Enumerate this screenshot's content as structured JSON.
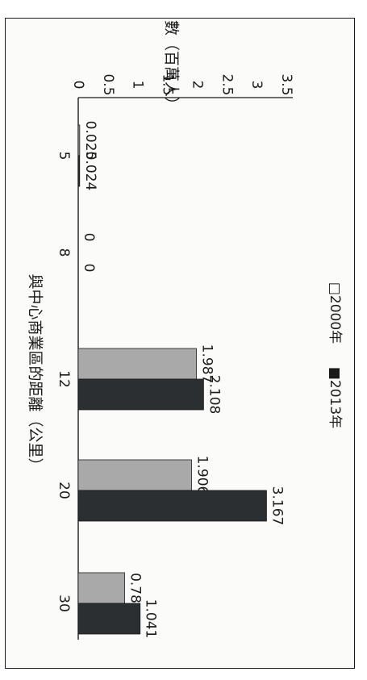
{
  "chart_data": {
    "type": "bar",
    "orientation": "rotated-90-clockwise",
    "categories": [
      "5",
      "8",
      "12",
      "20",
      "30"
    ],
    "series": [
      {
        "name": "□2000年",
        "values": [
          0.025,
          0,
          1.987,
          1.906,
          0.78
        ],
        "color": "#a9a9a9"
      },
      {
        "name": "■2013年",
        "values": [
          0.024,
          0,
          2.108,
          3.167,
          1.041
        ],
        "color": "#2b2f31"
      }
    ],
    "value_labels": [
      [
        "0.025",
        "0",
        "1.987",
        "1.906",
        "0.78"
      ],
      [
        "0.024",
        "0",
        "2.108",
        "3.167",
        "1.041"
      ]
    ],
    "yticks": [
      "0",
      "0.5",
      "1",
      "1.5",
      "2",
      "2.5",
      "3",
      "3.5"
    ],
    "ylim": [
      0,
      3.5
    ],
    "ylabel": "人口數（百萬人）",
    "xlabel": "與中心商業區的距離（公里）",
    "legend_position": "top"
  }
}
